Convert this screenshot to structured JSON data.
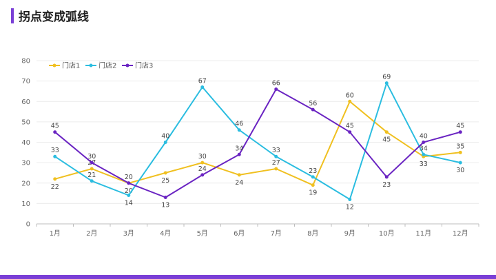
{
  "page": {
    "title": "拐点变成弧线"
  },
  "colors": {
    "accent": "#7a3fd6"
  },
  "chart_data": {
    "type": "line",
    "categories": [
      "1月",
      "2月",
      "3月",
      "4月",
      "5月",
      "6月",
      "7月",
      "8月",
      "9月",
      "10月",
      "11月",
      "12月"
    ],
    "ylim": [
      0,
      80
    ],
    "yticks": [
      0,
      10,
      20,
      30,
      40,
      50,
      60,
      70,
      80
    ],
    "grid": true,
    "legend_position": "top-left",
    "series": [
      {
        "name": "门店1",
        "color": "#f0c020",
        "values": [
          22,
          27,
          20,
          25,
          30,
          24,
          27,
          19,
          60,
          45,
          33,
          35
        ]
      },
      {
        "name": "门店2",
        "color": "#2bbde0",
        "values": [
          33,
          21,
          14,
          40,
          67,
          46,
          33,
          23,
          12,
          69,
          34,
          30
        ]
      },
      {
        "name": "门店3",
        "color": "#6a24c2",
        "values": [
          45,
          30,
          20,
          13,
          24,
          34,
          66,
          56,
          45,
          23,
          40,
          45
        ]
      }
    ]
  }
}
